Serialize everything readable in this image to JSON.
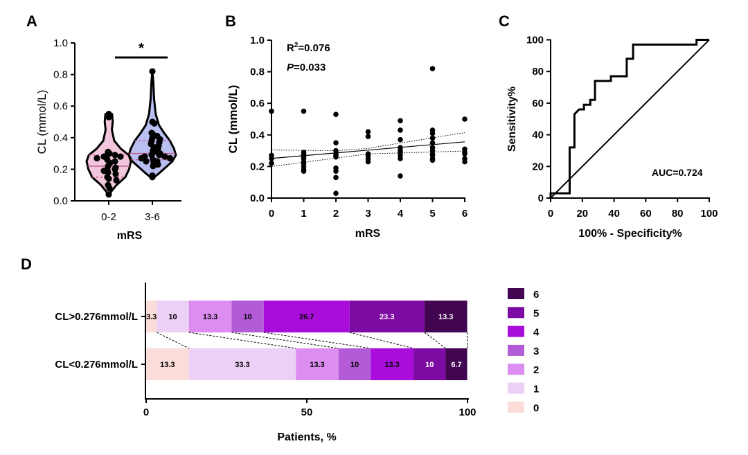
{
  "chart_data": [
    {
      "panel": "A",
      "type": "violin",
      "xlabel": "mRS",
      "ylabel": "CL (mmol/L)",
      "ylim": [
        0,
        1.0
      ],
      "yticks": [
        "0.0",
        "0.2",
        "0.4",
        "0.6",
        "0.8",
        "1.0"
      ],
      "categories": [
        "0-2",
        "3-6"
      ],
      "significance": "*",
      "colors": [
        "#f2c6dc",
        "#b9bff0"
      ],
      "groups": [
        {
          "name": "0-2",
          "median": 0.22,
          "q1": 0.15,
          "q3": 0.29,
          "values": [
            0.55,
            0.54,
            0.53,
            0.31,
            0.3,
            0.29,
            0.29,
            0.28,
            0.28,
            0.27,
            0.26,
            0.25,
            0.24,
            0.22,
            0.21,
            0.2,
            0.2,
            0.19,
            0.18,
            0.17,
            0.15,
            0.14,
            0.13,
            0.1,
            0.08,
            0.04
          ]
        },
        {
          "name": "3-6",
          "median": 0.3,
          "q1": 0.26,
          "q3": 0.38,
          "values": [
            0.82,
            0.5,
            0.49,
            0.43,
            0.42,
            0.41,
            0.4,
            0.39,
            0.38,
            0.37,
            0.36,
            0.35,
            0.34,
            0.33,
            0.32,
            0.31,
            0.3,
            0.3,
            0.29,
            0.29,
            0.28,
            0.28,
            0.27,
            0.27,
            0.26,
            0.25,
            0.25,
            0.24,
            0.23,
            0.22,
            0.16,
            0.15
          ]
        }
      ]
    },
    {
      "panel": "B",
      "type": "scatter",
      "xlabel": "mRS",
      "ylabel": "CL (mmol/L)",
      "ylim": [
        0,
        1.0
      ],
      "xlim": [
        0,
        6
      ],
      "xticks": [
        "0",
        "1",
        "2",
        "3",
        "4",
        "5",
        "6"
      ],
      "yticks": [
        "0.0",
        "0.2",
        "0.4",
        "0.6",
        "0.8",
        "1.0"
      ],
      "r2_label": "R",
      "r2_sup": "2",
      "r2_value": "=0.076",
      "p_label": "P",
      "p_value": "=0.033",
      "fit": {
        "intercept": 0.251,
        "slope": 0.0175
      },
      "ci_upper": [
        [
          0,
          0.305
        ],
        [
          2,
          0.3
        ],
        [
          3,
          0.315
        ],
        [
          6,
          0.415
        ]
      ],
      "ci_lower": [
        [
          0,
          0.2
        ],
        [
          3,
          0.28
        ],
        [
          6,
          0.298
        ]
      ],
      "points": [
        [
          0,
          0.55
        ],
        [
          0,
          0.27
        ],
        [
          0,
          0.25
        ],
        [
          0,
          0.22
        ],
        [
          1,
          0.55
        ],
        [
          1,
          0.29
        ],
        [
          1,
          0.28
        ],
        [
          1,
          0.27
        ],
        [
          1,
          0.26
        ],
        [
          1,
          0.25
        ],
        [
          1,
          0.23
        ],
        [
          1,
          0.22
        ],
        [
          1,
          0.2
        ],
        [
          1,
          0.18
        ],
        [
          1,
          0.17
        ],
        [
          2,
          0.53
        ],
        [
          2,
          0.35
        ],
        [
          2,
          0.3
        ],
        [
          2,
          0.28
        ],
        [
          2,
          0.27
        ],
        [
          2,
          0.26
        ],
        [
          2,
          0.19
        ],
        [
          2,
          0.17
        ],
        [
          2,
          0.13
        ],
        [
          2,
          0.03
        ],
        [
          3,
          0.42
        ],
        [
          3,
          0.39
        ],
        [
          3,
          0.28
        ],
        [
          3,
          0.27
        ],
        [
          3,
          0.25
        ],
        [
          3,
          0.23
        ],
        [
          4,
          0.49
        ],
        [
          4,
          0.43
        ],
        [
          4,
          0.37
        ],
        [
          4,
          0.32
        ],
        [
          4,
          0.3
        ],
        [
          4,
          0.29
        ],
        [
          4,
          0.27
        ],
        [
          4,
          0.25
        ],
        [
          4,
          0.14
        ],
        [
          5,
          0.82
        ],
        [
          5,
          0.43
        ],
        [
          5,
          0.41
        ],
        [
          5,
          0.38
        ],
        [
          5,
          0.35
        ],
        [
          5,
          0.32
        ],
        [
          5,
          0.3
        ],
        [
          5,
          0.28
        ],
        [
          5,
          0.27
        ],
        [
          5,
          0.25
        ],
        [
          5,
          0.24
        ],
        [
          6,
          0.5
        ],
        [
          6,
          0.31
        ],
        [
          6,
          0.29
        ],
        [
          6,
          0.28
        ],
        [
          6,
          0.25
        ],
        [
          6,
          0.23
        ]
      ]
    },
    {
      "panel": "C",
      "type": "line",
      "xlabel": "100% - Specificity%",
      "ylabel": "Sensitivity%",
      "xlim": [
        0,
        100
      ],
      "ylim": [
        0,
        100
      ],
      "xticks": [
        "0",
        "20",
        "40",
        "60",
        "80",
        "100"
      ],
      "yticks": [
        "0",
        "20",
        "40",
        "60",
        "80",
        "100"
      ],
      "annotation": "AUC=0.724",
      "roc": [
        [
          0,
          0
        ],
        [
          0,
          3
        ],
        [
          12,
          3
        ],
        [
          12,
          32
        ],
        [
          15,
          32
        ],
        [
          15,
          53
        ],
        [
          18,
          56
        ],
        [
          21,
          56
        ],
        [
          21,
          59
        ],
        [
          25,
          59
        ],
        [
          25,
          62
        ],
        [
          28,
          62
        ],
        [
          28,
          74
        ],
        [
          38,
          74
        ],
        [
          38,
          77
        ],
        [
          48,
          77
        ],
        [
          48,
          88
        ],
        [
          52,
          88
        ],
        [
          52,
          97
        ],
        [
          92,
          97
        ],
        [
          92,
          100
        ],
        [
          100,
          100
        ]
      ]
    },
    {
      "panel": "D",
      "type": "bar",
      "orientation": "horizontal",
      "stacked": true,
      "xlabel": "Patients, %",
      "xlim": [
        0,
        100
      ],
      "xticks": [
        "0",
        "50",
        "100"
      ],
      "categories": [
        "CL>0.276mmol/L",
        "CL<0.276mmol/L"
      ],
      "legend_title": "",
      "legend_position": "right",
      "series": [
        {
          "name": "0",
          "color": "#fbdcd8",
          "values": [
            3.3,
            13.3
          ],
          "labels": [
            "3.3",
            "13.3"
          ],
          "text_color": "#000000"
        },
        {
          "name": "1",
          "color": "#ecd0f6",
          "values": [
            10,
            33.3
          ],
          "labels": [
            "10",
            "33.3"
          ],
          "text_color": "#000000"
        },
        {
          "name": "2",
          "color": "#dc8ef0",
          "values": [
            13.3,
            13.3
          ],
          "labels": [
            "13.3",
            "13.3"
          ],
          "text_color": "#000000"
        },
        {
          "name": "3",
          "color": "#b35bd6",
          "values": [
            10,
            10
          ],
          "labels": [
            "10",
            "10"
          ],
          "text_color": "#000000"
        },
        {
          "name": "4",
          "color": "#a90ddc",
          "values": [
            26.7,
            13.3
          ],
          "labels": [
            "26.7",
            "13.3"
          ],
          "text_color": "#000000"
        },
        {
          "name": "5",
          "color": "#7d0aa2",
          "values": [
            23.3,
            10
          ],
          "labels": [
            "23.3",
            "10"
          ],
          "text_color": "#ffffff"
        },
        {
          "name": "6",
          "color": "#420551",
          "values": [
            13.3,
            6.7
          ],
          "labels": [
            "13.3",
            "6.7"
          ],
          "text_color": "#ffffff"
        }
      ]
    }
  ]
}
